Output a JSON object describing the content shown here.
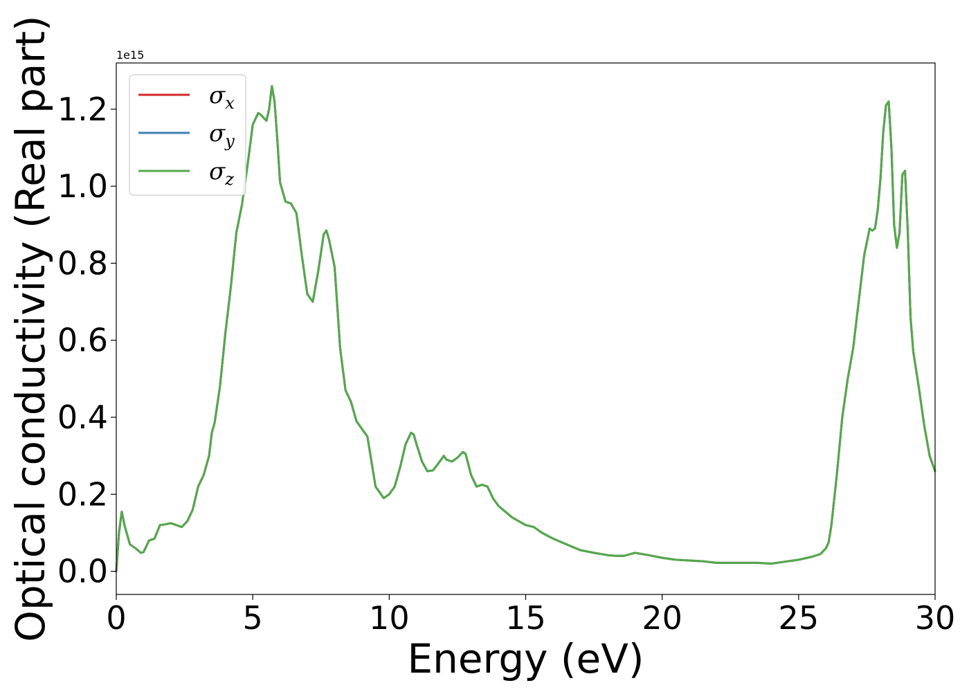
{
  "chart_data": {
    "type": "line",
    "title": "",
    "xlabel": "Energy (eV)",
    "ylabel": "Optical conductivity (Real part)",
    "y_offset_label": "1e15",
    "xlim": [
      0,
      30
    ],
    "ylim": [
      -0.06,
      1.32
    ],
    "xticks": [
      0,
      5,
      10,
      15,
      20,
      25,
      30
    ],
    "yticks": [
      0.0,
      0.2,
      0.4,
      0.6,
      0.8,
      1.0,
      1.2
    ],
    "xtick_labels": [
      "0",
      "5",
      "10",
      "15",
      "20",
      "25",
      "30"
    ],
    "ytick_labels": [
      "0.0",
      "0.2",
      "0.4",
      "0.6",
      "0.8",
      "1.0",
      "1.2"
    ],
    "grid": false,
    "legend_position": "upper-left",
    "x": [
      0,
      0.1,
      0.2,
      0.3,
      0.5,
      0.7,
      0.9,
      1.0,
      1.2,
      1.4,
      1.6,
      1.8,
      2.0,
      2.2,
      2.4,
      2.6,
      2.8,
      3.0,
      3.2,
      3.4,
      3.5,
      3.6,
      3.8,
      4.0,
      4.2,
      4.4,
      4.6,
      4.8,
      5.0,
      5.2,
      5.3,
      5.5,
      5.6,
      5.7,
      5.8,
      5.9,
      6.0,
      6.2,
      6.4,
      6.6,
      6.8,
      7.0,
      7.2,
      7.4,
      7.6,
      7.7,
      7.8,
      8.0,
      8.2,
      8.4,
      8.6,
      8.8,
      9.0,
      9.2,
      9.5,
      9.8,
      10.0,
      10.2,
      10.4,
      10.6,
      10.8,
      10.9,
      11.0,
      11.2,
      11.4,
      11.6,
      11.8,
      12.0,
      12.1,
      12.3,
      12.5,
      12.7,
      12.8,
      13.0,
      13.2,
      13.4,
      13.6,
      13.8,
      14.0,
      14.5,
      15.0,
      15.3,
      15.6,
      16.0,
      16.5,
      17.0,
      17.5,
      18.0,
      18.3,
      18.6,
      19.0,
      19.5,
      20.0,
      20.5,
      21.0,
      21.5,
      22.0,
      22.5,
      23.0,
      23.5,
      24.0,
      24.5,
      25.0,
      25.5,
      25.8,
      26.0,
      26.1,
      26.2,
      26.4,
      26.6,
      26.8,
      27.0,
      27.2,
      27.4,
      27.6,
      27.7,
      27.8,
      27.9,
      28.0,
      28.1,
      28.2,
      28.3,
      28.4,
      28.5,
      28.6,
      28.7,
      28.8,
      28.9,
      29.0,
      29.1,
      29.2,
      29.4,
      29.6,
      29.8,
      30.0
    ],
    "series": [
      {
        "name": "σx",
        "label_base": "σ",
        "label_sub": "x",
        "color": "#d62728",
        "values": [
          0.0,
          0.1,
          0.155,
          0.12,
          0.07,
          0.06,
          0.048,
          0.05,
          0.08,
          0.085,
          0.12,
          0.122,
          0.125,
          0.12,
          0.115,
          0.13,
          0.16,
          0.22,
          0.25,
          0.3,
          0.36,
          0.385,
          0.48,
          0.62,
          0.74,
          0.88,
          0.95,
          1.05,
          1.16,
          1.19,
          1.185,
          1.17,
          1.2,
          1.26,
          1.22,
          1.12,
          1.01,
          0.96,
          0.955,
          0.93,
          0.82,
          0.72,
          0.7,
          0.78,
          0.875,
          0.885,
          0.86,
          0.79,
          0.58,
          0.47,
          0.44,
          0.39,
          0.37,
          0.35,
          0.22,
          0.19,
          0.2,
          0.22,
          0.27,
          0.33,
          0.36,
          0.355,
          0.33,
          0.285,
          0.26,
          0.262,
          0.28,
          0.3,
          0.29,
          0.285,
          0.295,
          0.31,
          0.305,
          0.25,
          0.22,
          0.225,
          0.22,
          0.19,
          0.17,
          0.14,
          0.12,
          0.115,
          0.1,
          0.085,
          0.07,
          0.055,
          0.048,
          0.042,
          0.04,
          0.04,
          0.048,
          0.042,
          0.035,
          0.03,
          0.028,
          0.026,
          0.022,
          0.022,
          0.022,
          0.022,
          0.02,
          0.025,
          0.03,
          0.038,
          0.045,
          0.06,
          0.075,
          0.12,
          0.25,
          0.4,
          0.5,
          0.58,
          0.7,
          0.82,
          0.89,
          0.885,
          0.89,
          0.94,
          1.02,
          1.14,
          1.21,
          1.22,
          1.1,
          0.9,
          0.84,
          0.88,
          1.03,
          1.04,
          0.88,
          0.66,
          0.57,
          0.48,
          0.38,
          0.3,
          0.26
        ]
      },
      {
        "name": "σy",
        "label_base": "σ",
        "label_sub": "y",
        "color": "#3d7fb3",
        "values": [
          0.0,
          0.1,
          0.155,
          0.12,
          0.07,
          0.06,
          0.048,
          0.05,
          0.08,
          0.085,
          0.12,
          0.122,
          0.125,
          0.12,
          0.115,
          0.13,
          0.16,
          0.22,
          0.25,
          0.3,
          0.36,
          0.385,
          0.48,
          0.62,
          0.74,
          0.88,
          0.95,
          1.05,
          1.16,
          1.19,
          1.185,
          1.17,
          1.2,
          1.26,
          1.22,
          1.12,
          1.01,
          0.96,
          0.955,
          0.93,
          0.82,
          0.72,
          0.7,
          0.78,
          0.875,
          0.885,
          0.86,
          0.79,
          0.58,
          0.47,
          0.44,
          0.39,
          0.37,
          0.35,
          0.22,
          0.19,
          0.2,
          0.22,
          0.27,
          0.33,
          0.36,
          0.355,
          0.33,
          0.285,
          0.26,
          0.262,
          0.28,
          0.3,
          0.29,
          0.285,
          0.295,
          0.31,
          0.305,
          0.25,
          0.22,
          0.225,
          0.22,
          0.19,
          0.17,
          0.14,
          0.12,
          0.115,
          0.1,
          0.085,
          0.07,
          0.055,
          0.048,
          0.042,
          0.04,
          0.04,
          0.048,
          0.042,
          0.035,
          0.03,
          0.028,
          0.026,
          0.022,
          0.022,
          0.022,
          0.022,
          0.02,
          0.025,
          0.03,
          0.038,
          0.045,
          0.06,
          0.075,
          0.12,
          0.25,
          0.4,
          0.5,
          0.58,
          0.7,
          0.82,
          0.89,
          0.885,
          0.89,
          0.94,
          1.02,
          1.14,
          1.21,
          1.22,
          1.1,
          0.9,
          0.84,
          0.88,
          1.03,
          1.04,
          0.88,
          0.66,
          0.57,
          0.48,
          0.38,
          0.3,
          0.26
        ]
      },
      {
        "name": "σz",
        "label_base": "σ",
        "label_sub": "z",
        "color": "#55a84b",
        "values": [
          0.0,
          0.1,
          0.155,
          0.12,
          0.07,
          0.06,
          0.048,
          0.05,
          0.08,
          0.085,
          0.12,
          0.122,
          0.125,
          0.12,
          0.115,
          0.13,
          0.16,
          0.22,
          0.25,
          0.3,
          0.36,
          0.385,
          0.48,
          0.62,
          0.74,
          0.88,
          0.95,
          1.05,
          1.16,
          1.19,
          1.185,
          1.17,
          1.2,
          1.26,
          1.22,
          1.12,
          1.01,
          0.96,
          0.955,
          0.93,
          0.82,
          0.72,
          0.7,
          0.78,
          0.875,
          0.885,
          0.86,
          0.79,
          0.58,
          0.47,
          0.44,
          0.39,
          0.37,
          0.35,
          0.22,
          0.19,
          0.2,
          0.22,
          0.27,
          0.33,
          0.36,
          0.355,
          0.33,
          0.285,
          0.26,
          0.262,
          0.28,
          0.3,
          0.29,
          0.285,
          0.295,
          0.31,
          0.305,
          0.25,
          0.22,
          0.225,
          0.22,
          0.19,
          0.17,
          0.14,
          0.12,
          0.115,
          0.1,
          0.085,
          0.07,
          0.055,
          0.048,
          0.042,
          0.04,
          0.04,
          0.048,
          0.042,
          0.035,
          0.03,
          0.028,
          0.026,
          0.022,
          0.022,
          0.022,
          0.022,
          0.02,
          0.025,
          0.03,
          0.038,
          0.045,
          0.06,
          0.075,
          0.12,
          0.25,
          0.4,
          0.5,
          0.58,
          0.7,
          0.82,
          0.89,
          0.885,
          0.89,
          0.94,
          1.02,
          1.14,
          1.21,
          1.22,
          1.1,
          0.9,
          0.84,
          0.88,
          1.03,
          1.04,
          0.88,
          0.66,
          0.57,
          0.48,
          0.38,
          0.3,
          0.26
        ]
      }
    ]
  }
}
